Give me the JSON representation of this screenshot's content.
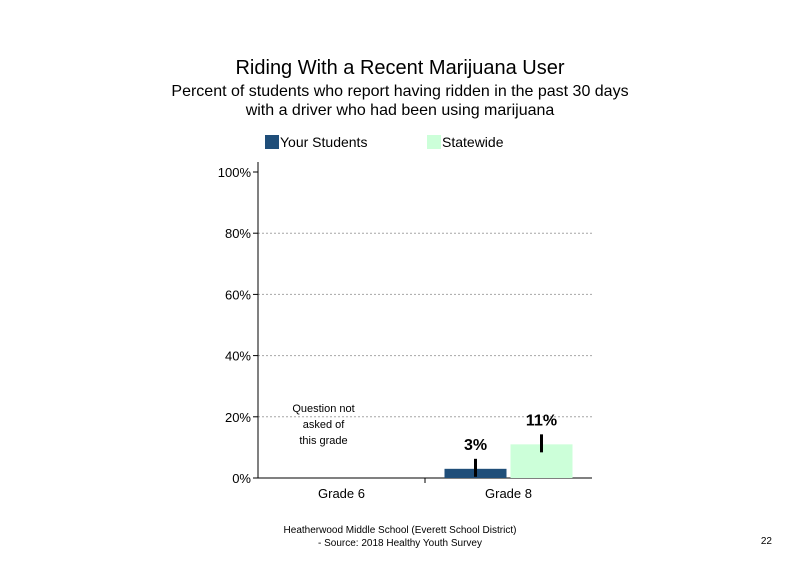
{
  "title": "Riding With a Recent Marijuana User",
  "subtitle_line1": "Percent of students who report having ridden in the past 30 days",
  "subtitle_line2": "with a driver who had been using marijuana",
  "footer_line1": "Heatherwood Middle School (Everett School District)",
  "footer_line2": "- Source: 2018 Healthy Youth Survey",
  "page_number": "22",
  "note_lines": [
    "Question not",
    "asked of",
    "this grade"
  ],
  "colors": {
    "your_students": "#1f4e79",
    "statewide": "#ccffd9"
  },
  "chart_data": {
    "type": "bar",
    "categories": [
      "Grade 6",
      "Grade 8"
    ],
    "series": [
      {
        "name": "Your Students",
        "values": [
          null,
          3
        ],
        "labels": [
          "",
          "3%"
        ]
      },
      {
        "name": "Statewide",
        "values": [
          null,
          11
        ],
        "labels": [
          "",
          "11%"
        ]
      }
    ],
    "ylim": [
      0,
      100
    ],
    "yticks": [
      0,
      20,
      40,
      60,
      80,
      100
    ],
    "ytick_labels": [
      "0%",
      "20%",
      "40%",
      "60%",
      "80%",
      "100%"
    ],
    "grid": true,
    "legend": "top",
    "error_bars": true
  }
}
